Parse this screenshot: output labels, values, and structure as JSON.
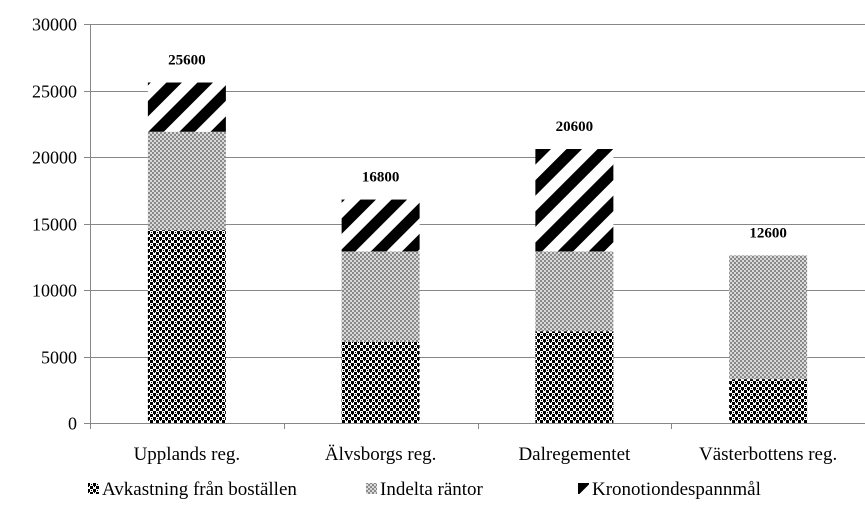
{
  "chart_data": {
    "type": "bar",
    "stacked": true,
    "categories": [
      "Upplands reg.",
      "Älvsborgs reg.",
      "Dalregementet",
      "Västerbottens reg."
    ],
    "series": [
      {
        "name": "Avkastning från boställen",
        "values": [
          14500,
          6100,
          6900,
          3300
        ],
        "pattern": "dots"
      },
      {
        "name": "Indelta räntor",
        "values": [
          7400,
          6800,
          6000,
          9300
        ],
        "pattern": "stipple"
      },
      {
        "name": "Kronotiondespannmål",
        "values": [
          3700,
          3900,
          7700,
          0
        ],
        "pattern": "diagonal-stripes"
      }
    ],
    "totals": [
      "25600",
      "16800",
      "20600",
      "12600"
    ],
    "ylim": [
      0,
      30000
    ],
    "yticks": [
      "0",
      "5000",
      "10000",
      "15000",
      "20000",
      "25000",
      "30000"
    ],
    "ytick_values": [
      0,
      5000,
      10000,
      15000,
      20000,
      25000,
      30000
    ],
    "grid": true,
    "legend_position": "bottom",
    "colors": {
      "dark": "#000000",
      "light": "#ffffff",
      "stipple": "#9a9a9a",
      "grid": "#878787",
      "axis": "#878787"
    }
  }
}
